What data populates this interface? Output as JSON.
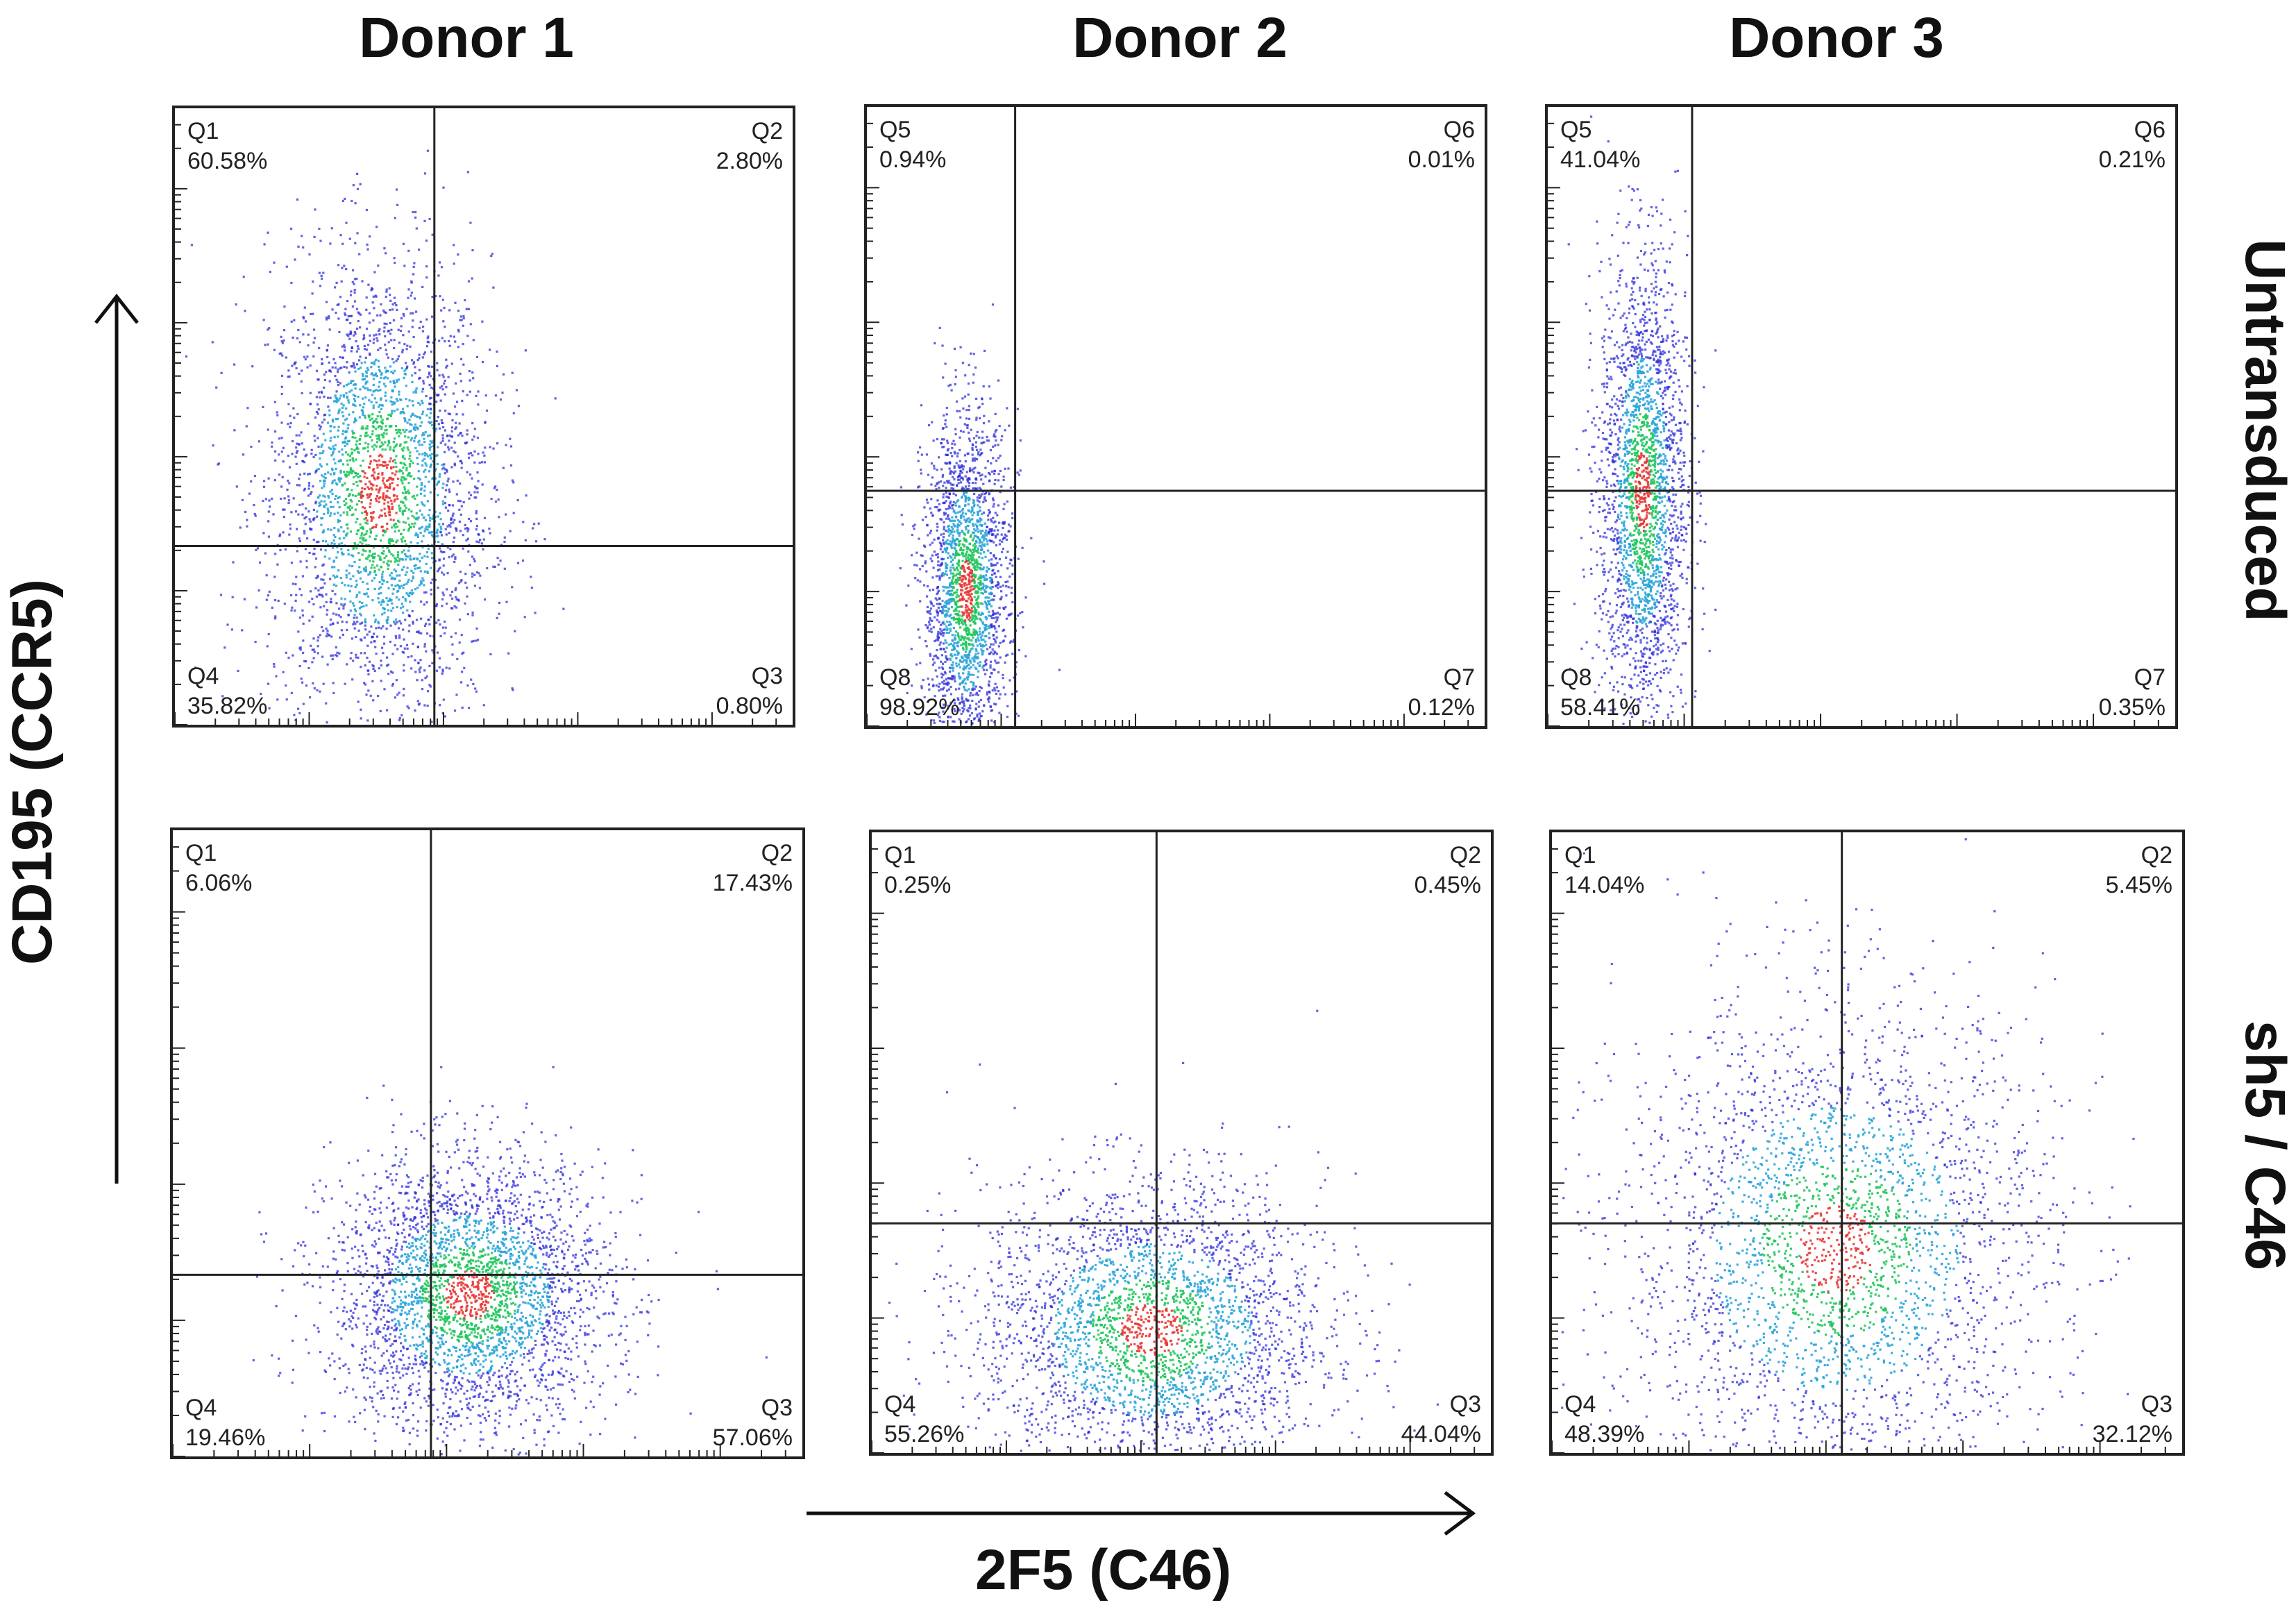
{
  "chart_data": {
    "type": "scatter",
    "title": "",
    "xlabel": "2F5 (C46)",
    "ylabel": "CD195 (CCR5)",
    "columns": [
      "Donor 1",
      "Donor 2",
      "Donor 3"
    ],
    "rows": [
      "Untransduced",
      "sh5 / C46"
    ],
    "panels": [
      {
        "id": "d1-untransduced",
        "column": "Donor 1",
        "row": "Untransduced",
        "gate_x": 0.42,
        "gate_y": 0.29,
        "quadrants": {
          "ul": {
            "name": "Q1",
            "value": "60.58%"
          },
          "ur": {
            "name": "Q2",
            "value": "2.80%"
          },
          "lr": {
            "name": "Q3",
            "value": "0.80%"
          },
          "ll": {
            "name": "Q4",
            "value": "35.82%"
          }
        },
        "population": {
          "cx": 0.33,
          "cy": 0.38,
          "sx": 0.09,
          "sy": 0.19,
          "n": 3000
        }
      },
      {
        "id": "d2-untransduced",
        "column": "Donor 2",
        "row": "Untransduced",
        "gate_x": 0.24,
        "gate_y": 0.38,
        "quadrants": {
          "ul": {
            "name": "Q5",
            "value": "0.94%"
          },
          "ur": {
            "name": "Q6",
            "value": "0.01%"
          },
          "lr": {
            "name": "Q7",
            "value": "0.12%"
          },
          "ll": {
            "name": "Q8",
            "value": "98.92%"
          }
        },
        "population": {
          "cx": 0.16,
          "cy": 0.22,
          "sx": 0.035,
          "sy": 0.14,
          "n": 2200
        }
      },
      {
        "id": "d3-untransduced",
        "column": "Donor 3",
        "row": "Untransduced",
        "gate_x": 0.23,
        "gate_y": 0.38,
        "quadrants": {
          "ul": {
            "name": "Q5",
            "value": "41.04%"
          },
          "ur": {
            "name": "Q6",
            "value": "0.21%"
          },
          "lr": {
            "name": "Q7",
            "value": "0.35%"
          },
          "ll": {
            "name": "Q8",
            "value": "58.41%"
          }
        },
        "population": {
          "cx": 0.15,
          "cy": 0.38,
          "sx": 0.035,
          "sy": 0.19,
          "n": 2400
        }
      },
      {
        "id": "d1-sh5c46",
        "column": "Donor 1",
        "row": "sh5 / C46",
        "gate_x": 0.41,
        "gate_y": 0.29,
        "quadrants": {
          "ul": {
            "name": "Q1",
            "value": "6.06%"
          },
          "ur": {
            "name": "Q2",
            "value": "17.43%"
          },
          "lr": {
            "name": "Q3",
            "value": "57.06%"
          },
          "ll": {
            "name": "Q4",
            "value": "19.46%"
          }
        },
        "population": {
          "cx": 0.47,
          "cy": 0.26,
          "sx": 0.11,
          "sy": 0.11,
          "n": 3200
        }
      },
      {
        "id": "d2-sh5c46",
        "column": "Donor 2",
        "row": "sh5 / C46",
        "gate_x": 0.46,
        "gate_y": 0.37,
        "quadrants": {
          "ul": {
            "name": "Q1",
            "value": "0.25%"
          },
          "ur": {
            "name": "Q2",
            "value": "0.45%"
          },
          "lr": {
            "name": "Q3",
            "value": "44.04%"
          },
          "ll": {
            "name": "Q4",
            "value": "55.26%"
          }
        },
        "population": {
          "cx": 0.45,
          "cy": 0.2,
          "sx": 0.14,
          "sy": 0.12,
          "n": 3000
        }
      },
      {
        "id": "d3-sh5c46",
        "column": "Donor 3",
        "row": "sh5 / C46",
        "gate_x": 0.46,
        "gate_y": 0.37,
        "quadrants": {
          "ul": {
            "name": "Q1",
            "value": "14.04%"
          },
          "ur": {
            "name": "Q2",
            "value": "5.45%"
          },
          "lr": {
            "name": "Q3",
            "value": "32.12%"
          },
          "ll": {
            "name": "Q4",
            "value": "48.39%"
          }
        },
        "population": {
          "cx": 0.45,
          "cy": 0.33,
          "sx": 0.17,
          "sy": 0.2,
          "n": 3000
        }
      }
    ]
  },
  "colors": {
    "low_density": "#2d2dd8",
    "mid_density": "#2aa5d8",
    "high_density": "#22c55e",
    "peak_density": "#e53935",
    "axis": "#222222",
    "text": "#111111"
  }
}
